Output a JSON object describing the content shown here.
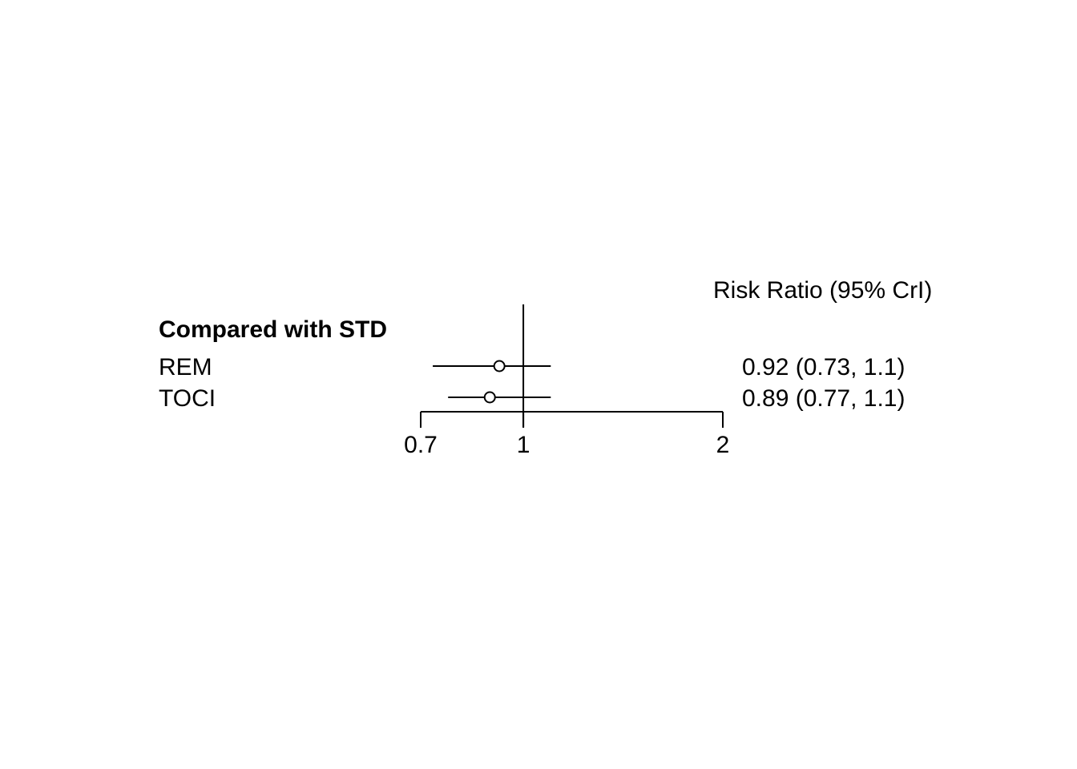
{
  "chart_data": {
    "type": "forest",
    "header_label": "Risk Ratio (95% CrI)",
    "group_label": "Compared with STD",
    "scale": "log",
    "xlim": [
      0.7,
      2
    ],
    "reference_line": 1,
    "ticks": [
      {
        "value": 0.7,
        "label": "0.7"
      },
      {
        "value": 1,
        "label": "1"
      },
      {
        "value": 2,
        "label": "2"
      }
    ],
    "rows": [
      {
        "label": "REM",
        "estimate": 0.92,
        "lower": 0.73,
        "upper": 1.1,
        "text": "0.92 (0.73, 1.1)"
      },
      {
        "label": "TOCI",
        "estimate": 0.89,
        "lower": 0.77,
        "upper": 1.1,
        "text": "0.89 (0.77, 1.1)"
      }
    ],
    "colors": {
      "ink": "#000000",
      "background": "#ffffff"
    }
  }
}
